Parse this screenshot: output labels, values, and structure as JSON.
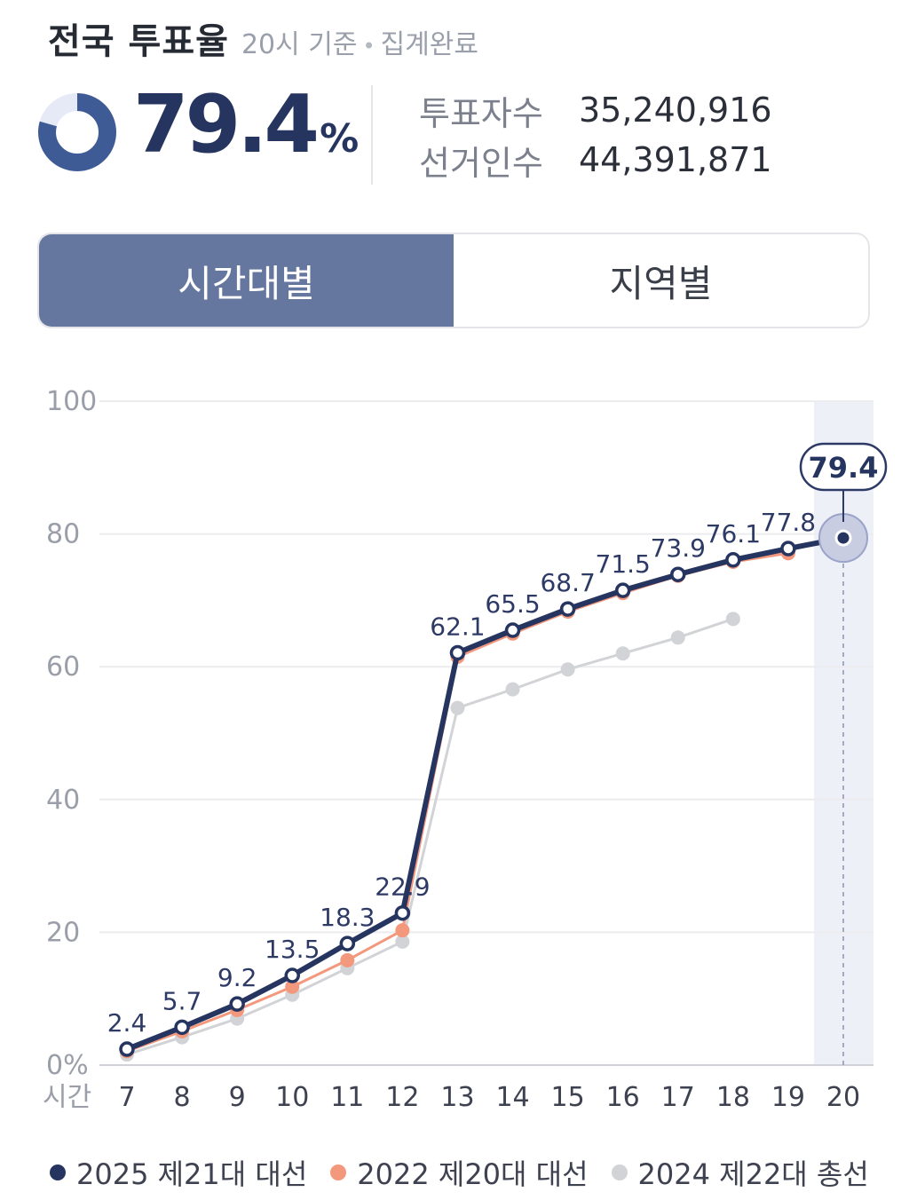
{
  "header": {
    "title": "전국 투표율",
    "subtitle_time": "20시 기준",
    "subtitle_sep": "•",
    "subtitle_status": "집계완료"
  },
  "summary": {
    "rate_value": "79.4",
    "rate_unit": "%",
    "rate_fraction": 0.794,
    "voters_label": "투표자수",
    "voters_value": "35,240,916",
    "electorate_label": "선거인수",
    "electorate_value": "44,391,871"
  },
  "tabs": [
    {
      "label": "시간대별",
      "active": true
    },
    {
      "label": "지역별",
      "active": false
    }
  ],
  "colors": {
    "main": "#26355f",
    "prev": "#f3987d",
    "gray": "#d2d3d6",
    "tab_active": "#66779f",
    "highlight": "#eef0f8"
  },
  "chart_data": {
    "type": "line",
    "x_axis_label": "시간",
    "x": [
      7,
      8,
      9,
      10,
      11,
      12,
      13,
      14,
      15,
      16,
      17,
      18,
      19,
      20
    ],
    "y_ticks": [
      "0%",
      "20",
      "40",
      "60",
      "80",
      "100"
    ],
    "ylim": [
      0,
      100
    ],
    "grid": true,
    "highlight_x": 20,
    "callout_value": "79.4",
    "series": [
      {
        "name": "2025 제21대 대선",
        "color": "#26355f",
        "values": [
          2.4,
          5.7,
          9.2,
          13.5,
          18.3,
          22.9,
          62.1,
          65.5,
          68.7,
          71.5,
          73.9,
          76.1,
          77.8,
          79.4
        ],
        "labels": [
          "2.4",
          "5.7",
          "9.2",
          "13.5",
          "18.3",
          "22.9",
          "62.1",
          "65.5",
          "68.7",
          "71.5",
          "73.9",
          "76.1",
          "77.8",
          ""
        ]
      },
      {
        "name": "2022 제20대 대선",
        "color": "#f3987d",
        "values": [
          2.1,
          5.1,
          8.3,
          11.8,
          15.8,
          20.3,
          61.5,
          65.0,
          68.3,
          71.1,
          73.7,
          75.8,
          77.1,
          null
        ]
      },
      {
        "name": "2024 제22대 총선",
        "color": "#d2d3d6",
        "values": [
          1.6,
          4.2,
          7.0,
          10.6,
          14.6,
          18.6,
          53.8,
          56.6,
          59.6,
          62.0,
          64.4,
          67.2,
          null,
          null
        ]
      }
    ],
    "legend_position": "bottom"
  }
}
